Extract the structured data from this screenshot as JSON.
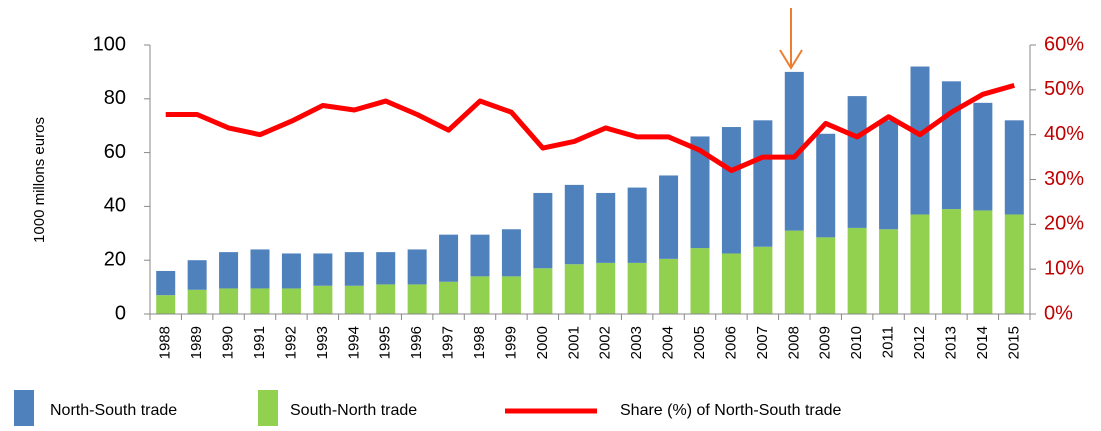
{
  "chart_data": {
    "type": "bar",
    "stacked": true,
    "ylabel": "1000 millons euros",
    "categories": [
      "1988",
      "1989",
      "1990",
      "1991",
      "1992",
      "1993",
      "1994",
      "1995",
      "1996",
      "1997",
      "1998",
      "1999",
      "2000",
      "2001",
      "2002",
      "2003",
      "2004",
      "2005",
      "2006",
      "2007",
      "2008",
      "2009",
      "2010",
      "2011",
      "2012",
      "2013",
      "2014",
      "2015"
    ],
    "series": [
      {
        "name": "South-North trade",
        "color": "#92d050",
        "values": [
          7,
          9,
          9.5,
          9.5,
          9.5,
          10.5,
          10.5,
          11,
          11,
          12,
          14,
          14,
          17,
          18.5,
          19,
          19,
          20.5,
          24.5,
          22.5,
          25,
          31,
          28.5,
          32,
          31.5,
          37,
          39,
          38.5,
          37
        ]
      },
      {
        "name": "North-South trade",
        "color": "#4f81bd",
        "values": [
          9,
          11,
          13.5,
          14.5,
          13,
          12,
          12.5,
          12,
          13,
          17.5,
          15.5,
          17.5,
          28,
          29.5,
          26,
          28,
          31,
          41.5,
          47,
          47,
          59,
          38.5,
          49,
          40.5,
          55,
          47.5,
          40,
          35
        ]
      },
      {
        "name": "Share (%) of North-South trade",
        "type": "line",
        "axis": "y2",
        "color": "#ff0000",
        "values": [
          44.5,
          44.5,
          41.5,
          40,
          43,
          46.5,
          45.5,
          47.5,
          44.5,
          41,
          47.5,
          45,
          37,
          38.5,
          41.5,
          39.5,
          39.5,
          36.5,
          32,
          35,
          35,
          42.5,
          39.5,
          44,
          40,
          45,
          49,
          51
        ]
      }
    ],
    "ylim": [
      0,
      100
    ],
    "yticks": [
      0,
      20,
      40,
      60,
      80,
      100
    ],
    "y2lim": [
      0,
      60
    ],
    "y2ticks": [
      {
        "value": 0,
        "label": "0%"
      },
      {
        "value": 10,
        "label": "10%"
      },
      {
        "value": 20,
        "label": "20%"
      },
      {
        "value": 30,
        "label": "30%"
      },
      {
        "value": 40,
        "label": "40%"
      },
      {
        "value": 50,
        "label": "50%"
      },
      {
        "value": 60,
        "label": "60%"
      }
    ],
    "grid": false
  }
}
